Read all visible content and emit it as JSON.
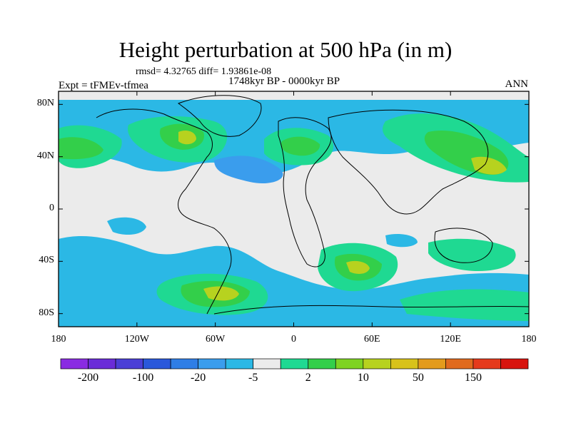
{
  "title": "Height perturbation at 500 hPa (in m)",
  "stats": "rmsd= 4.32765 diff= 1.93861e-08",
  "period": "1748kyr BP - 0000kyr BP",
  "experiment": "Expt = tFMEv-tfmea",
  "season": "ANN",
  "axes": {
    "lat_ticks": [
      {
        "label": "80N",
        "value": 80
      },
      {
        "label": "40N",
        "value": 40
      },
      {
        "label": "0",
        "value": 0
      },
      {
        "label": "40S",
        "value": -40
      },
      {
        "label": "80S",
        "value": -80
      }
    ],
    "lon_ticks": [
      {
        "label": "180",
        "value": -180
      },
      {
        "label": "120W",
        "value": -120
      },
      {
        "label": "60W",
        "value": -60
      },
      {
        "label": "0",
        "value": 0
      },
      {
        "label": "60E",
        "value": 60
      },
      {
        "label": "120E",
        "value": 120
      },
      {
        "label": "180",
        "value": 180
      }
    ]
  },
  "colorbar": {
    "colors": [
      "#8a2be2",
      "#6a2cd8",
      "#4b3fd6",
      "#2a58db",
      "#2f7ee6",
      "#3a9ded",
      "#2bb8e5",
      "#ebebeb",
      "#1fd992",
      "#33cf4a",
      "#7ed322",
      "#b7d21f",
      "#d8c21a",
      "#e39b1c",
      "#e06a1e",
      "#e53a1c",
      "#d8140e"
    ],
    "labels": [
      {
        "text": "-200",
        "edge": 1
      },
      {
        "text": "-100",
        "edge": 3
      },
      {
        "text": "-20",
        "edge": 5
      },
      {
        "text": "-5",
        "edge": 7
      },
      {
        "text": "2",
        "edge": 9
      },
      {
        "text": "10",
        "edge": 11
      },
      {
        "text": "50",
        "edge": 13
      },
      {
        "text": "150",
        "edge": 15
      }
    ]
  }
}
